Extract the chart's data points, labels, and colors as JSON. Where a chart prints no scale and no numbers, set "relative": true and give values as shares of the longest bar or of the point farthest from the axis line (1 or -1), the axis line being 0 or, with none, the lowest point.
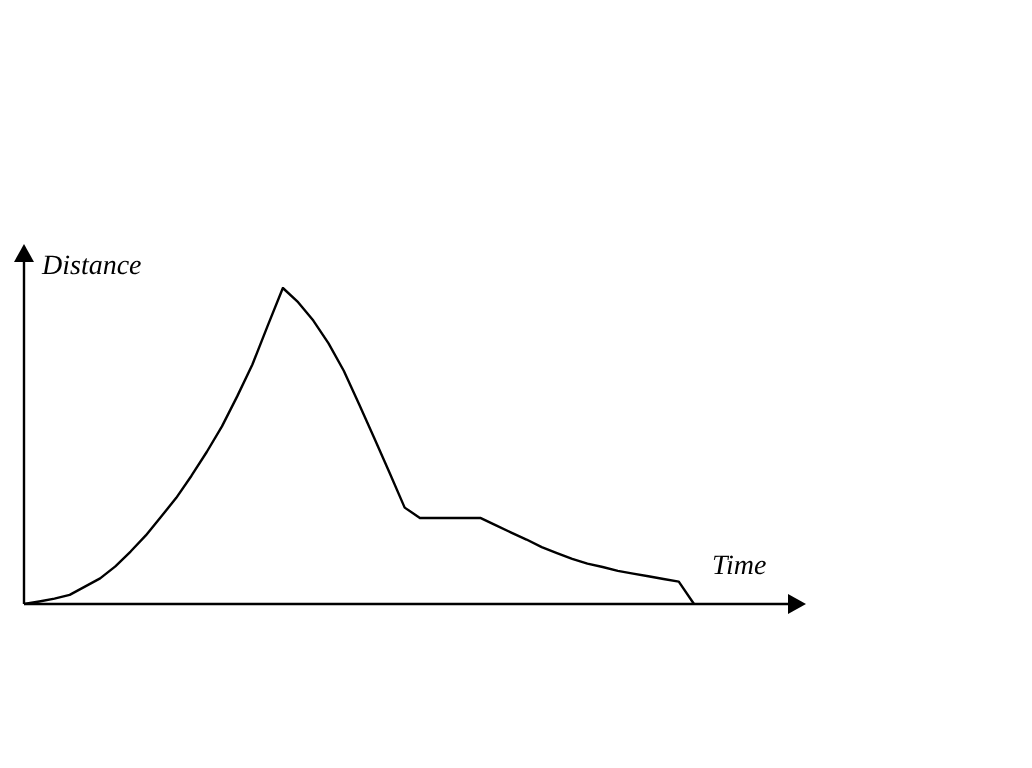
{
  "chart_data": {
    "type": "line",
    "relative": true,
    "xlabel": "Time",
    "ylabel": "Distance",
    "categories": [
      null,
      null,
      null,
      null,
      null,
      null,
      null,
      null,
      null,
      null,
      null,
      null,
      null,
      null,
      null,
      null,
      null,
      null,
      null,
      null,
      null,
      null,
      null,
      null,
      null,
      null,
      null,
      null,
      null,
      null,
      null,
      null,
      null,
      null,
      null,
      null,
      null,
      null,
      null,
      null,
      null,
      null,
      null,
      null,
      null
    ],
    "series": [
      {
        "color": "#000000",
        "values": [
          0,
          0.008,
          0.017,
          0.029,
          0.055,
          0.081,
          0.119,
          0.166,
          0.217,
          0.276,
          0.336,
          0.406,
          0.481,
          0.562,
          0.657,
          0.758,
          0.88,
          1,
          0.955,
          0.897,
          0.825,
          0.738,
          0.633,
          0.525,
          0.416,
          0.305,
          0.272,
          0.272,
          0.272,
          0.272,
          0.272,
          0.249,
          0.226,
          0.204,
          0.18,
          0.161,
          0.143,
          0.128,
          0.117,
          0.105,
          0.096,
          0.088,
          0.079,
          0.071,
          0
        ]
      }
    ]
  }
}
